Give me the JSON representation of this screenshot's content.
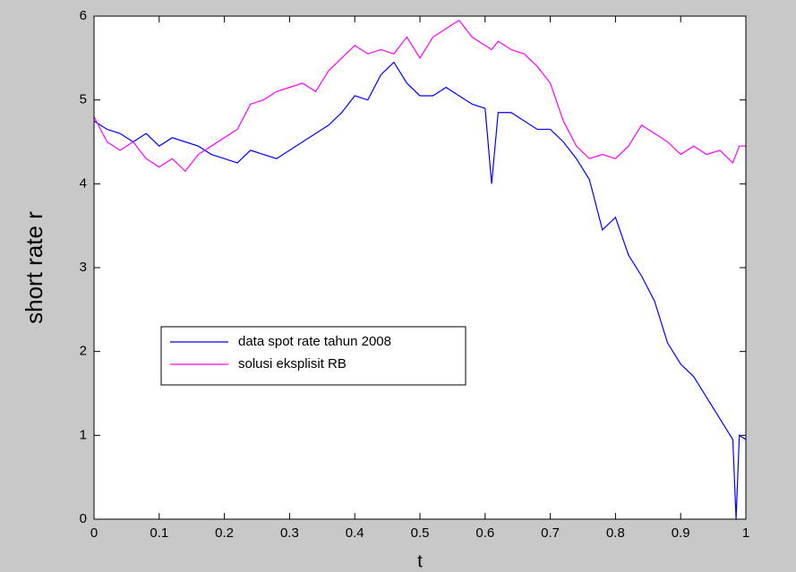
{
  "chart_data": {
    "type": "line",
    "xlabel": "t",
    "ylabel": "short rate r",
    "x": [
      0,
      0.02,
      0.04,
      0.06,
      0.08,
      0.1,
      0.12,
      0.14,
      0.16,
      0.18,
      0.2,
      0.22,
      0.24,
      0.26,
      0.28,
      0.3,
      0.32,
      0.34,
      0.36,
      0.38,
      0.4,
      0.42,
      0.44,
      0.46,
      0.48,
      0.5,
      0.52,
      0.54,
      0.56,
      0.58,
      0.6,
      0.61,
      0.62,
      0.64,
      0.66,
      0.68,
      0.7,
      0.72,
      0.74,
      0.76,
      0.78,
      0.8,
      0.82,
      0.84,
      0.86,
      0.88,
      0.9,
      0.92,
      0.94,
      0.96,
      0.98,
      0.985,
      0.99,
      1
    ],
    "series": [
      {
        "name": "data spot rate tahun 2008",
        "color": "#0000ff",
        "values": [
          4.75,
          4.65,
          4.6,
          4.5,
          4.6,
          4.45,
          4.55,
          4.5,
          4.45,
          4.35,
          4.3,
          4.25,
          4.4,
          4.35,
          4.3,
          4.4,
          4.5,
          4.6,
          4.7,
          4.85,
          5.05,
          5.0,
          5.3,
          5.45,
          5.2,
          5.05,
          5.05,
          5.15,
          5.05,
          4.95,
          4.9,
          4.0,
          4.85,
          4.85,
          4.75,
          4.65,
          4.65,
          4.5,
          4.3,
          4.05,
          3.45,
          3.6,
          3.15,
          2.9,
          2.6,
          2.1,
          1.85,
          1.7,
          1.45,
          1.2,
          0.95,
          0.0,
          1.0,
          0.95
        ]
      },
      {
        "name": "solusi eksplisit RB",
        "color": "#ff00ff",
        "values": [
          4.8,
          4.5,
          4.4,
          4.5,
          4.3,
          4.2,
          4.3,
          4.15,
          4.35,
          4.45,
          4.55,
          4.65,
          4.95,
          5.0,
          5.1,
          5.15,
          5.2,
          5.1,
          5.35,
          5.5,
          5.65,
          5.55,
          5.6,
          5.55,
          5.75,
          5.5,
          5.75,
          5.85,
          5.95,
          5.75,
          5.65,
          5.6,
          5.7,
          5.6,
          5.55,
          5.4,
          5.2,
          4.75,
          4.45,
          4.3,
          4.35,
          4.3,
          4.45,
          4.7,
          4.6,
          4.5,
          4.35,
          4.45,
          4.35,
          4.4,
          4.25,
          4.35,
          4.45,
          4.45
        ]
      }
    ],
    "xlim": [
      0,
      1
    ],
    "xticks": [
      0,
      0.1,
      0.2,
      0.3,
      0.4,
      0.5,
      0.6,
      0.7,
      0.8,
      0.9,
      1
    ],
    "ylim": [
      0,
      6
    ],
    "yticks": [
      0,
      1,
      2,
      3,
      4,
      5,
      6
    ],
    "grid": false,
    "legend": "lower left"
  }
}
